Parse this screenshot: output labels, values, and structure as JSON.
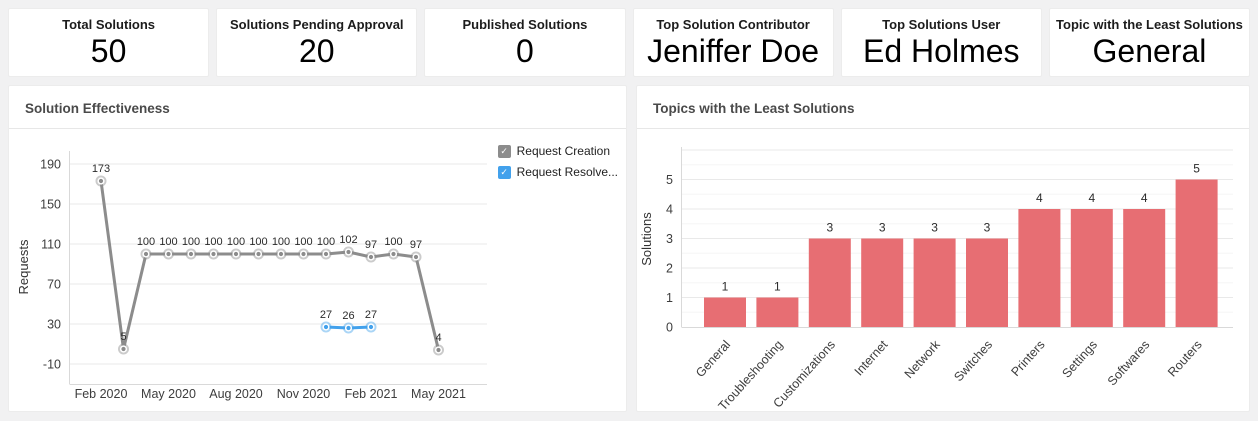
{
  "cards": [
    {
      "label": "Total Solutions",
      "value": "50"
    },
    {
      "label": "Solutions Pending Approval",
      "value": "20"
    },
    {
      "label": "Published Solutions",
      "value": "0"
    },
    {
      "label": "Top Solution Contributor",
      "value": "Jeniffer Doe"
    },
    {
      "label": "Top Solutions User",
      "value": "Ed Holmes"
    },
    {
      "label": "Topic with the Least Solutions",
      "value": "General"
    }
  ],
  "panels": {
    "line": {
      "title": "Solution Effectiveness"
    },
    "bar": {
      "title": "Topics with the Least Solutions"
    }
  },
  "chart_data": [
    {
      "type": "line",
      "title": "Solution Effectiveness",
      "ylabel": "Requests",
      "xlabel": "",
      "x": [
        "Feb 2020",
        "Mar 2020",
        "Apr 2020",
        "May 2020",
        "Jun 2020",
        "Jul 2020",
        "Aug 2020",
        "Sep 2020",
        "Oct 2020",
        "Nov 2020",
        "Dec 2020",
        "Jan 2021",
        "Feb 2021",
        "Mar 2021",
        "Apr 2021",
        "May 2021"
      ],
      "x_axis_ticks": [
        "Feb 2020",
        "May 2020",
        "Aug 2020",
        "Nov 2020",
        "Feb 2021",
        "May 2021"
      ],
      "y_ticks": [
        190,
        150,
        110,
        70,
        30,
        -10
      ],
      "ylim": [
        -10,
        200
      ],
      "grid": true,
      "legend_position": "right",
      "series": [
        {
          "name": "Request Creation",
          "color": "#8c8c8c",
          "values": [
            173,
            5,
            100,
            100,
            100,
            100,
            100,
            100,
            100,
            100,
            100,
            102,
            97,
            100,
            97,
            4
          ]
        },
        {
          "name": "Request Resolve...",
          "color": "#42a1ec",
          "values": [
            null,
            null,
            null,
            null,
            null,
            null,
            null,
            null,
            null,
            null,
            27,
            26,
            27,
            null,
            null,
            null
          ]
        }
      ]
    },
    {
      "type": "bar",
      "title": "Topics with the Least Solutions",
      "ylabel": "Solutions",
      "xlabel": "",
      "categories": [
        "General",
        "Troubleshooting",
        "Customizations",
        "Internet",
        "Network",
        "Switches",
        "Printers",
        "Settings",
        "Softwares",
        "Routers"
      ],
      "values": [
        1,
        1,
        3,
        3,
        3,
        3,
        4,
        4,
        4,
        5
      ],
      "y_ticks": [
        0,
        1,
        2,
        3,
        4,
        5
      ],
      "ylim": [
        0,
        6
      ],
      "grid": true,
      "bar_color": "#e76e73"
    }
  ]
}
